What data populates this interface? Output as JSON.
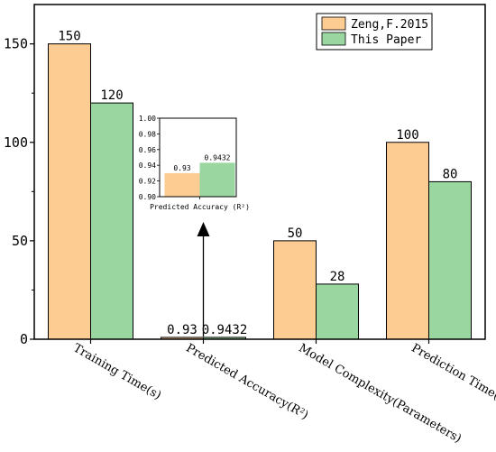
{
  "chart_data": {
    "type": "bar",
    "title": "",
    "xlabel": "",
    "ylabel": "",
    "ylim": [
      0,
      170
    ],
    "yticks": [
      0,
      50,
      100,
      150
    ],
    "categories": [
      "Training Time(s)",
      "Predicted Accuracy(R²)",
      "Model Complexity(Parameters)",
      "Prediction Time(ms)"
    ],
    "series": [
      {
        "name": "Zeng,F.2015",
        "color": "#fdcc93",
        "values": [
          150,
          0.93,
          50,
          100
        ],
        "labels": [
          "150",
          "0.93",
          "50",
          "100"
        ]
      },
      {
        "name": "This Paper",
        "color": "#99d6a0",
        "values": [
          120,
          0.9432,
          28,
          80
        ],
        "labels": [
          "120",
          "0.9432",
          "28",
          "80"
        ]
      }
    ],
    "legend_position": "top-right",
    "grid": false,
    "inset": {
      "ylim": [
        0.9,
        1.0
      ],
      "yticks": [
        "0.90",
        "0.92",
        "0.94",
        "0.96",
        "0.98",
        "1.00"
      ],
      "xlabel": "Predicted Accuracy (R²)",
      "values": [
        0.93,
        0.9432
      ],
      "labels": [
        "0.93",
        "0.9432"
      ]
    }
  }
}
